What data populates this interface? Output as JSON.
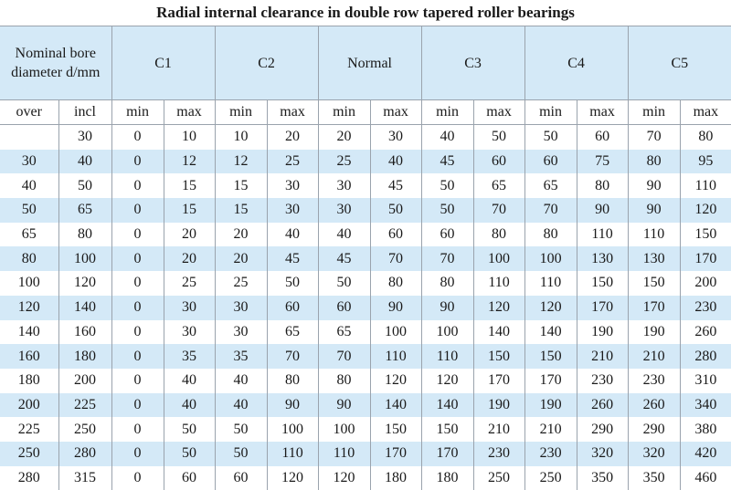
{
  "title": "Radial internal clearance in double row tapered roller bearings",
  "table": {
    "bore_header": "Nominal bore diameter d/mm",
    "groups": [
      "C1",
      "C2",
      "Normal",
      "C3",
      "C4",
      "C5"
    ],
    "sub_headers": [
      "over",
      "incl",
      "min",
      "max",
      "min",
      "max",
      "min",
      "max",
      "min",
      "max",
      "min",
      "max",
      "min",
      "max"
    ],
    "rows": [
      [
        "",
        "30",
        "0",
        "10",
        "10",
        "20",
        "20",
        "30",
        "40",
        "50",
        "50",
        "60",
        "70",
        "80"
      ],
      [
        "30",
        "40",
        "0",
        "12",
        "12",
        "25",
        "25",
        "40",
        "45",
        "60",
        "60",
        "75",
        "80",
        "95"
      ],
      [
        "40",
        "50",
        "0",
        "15",
        "15",
        "30",
        "30",
        "45",
        "50",
        "65",
        "65",
        "80",
        "90",
        "110"
      ],
      [
        "50",
        "65",
        "0",
        "15",
        "15",
        "30",
        "30",
        "50",
        "50",
        "70",
        "70",
        "90",
        "90",
        "120"
      ],
      [
        "65",
        "80",
        "0",
        "20",
        "20",
        "40",
        "40",
        "60",
        "60",
        "80",
        "80",
        "110",
        "110",
        "150"
      ],
      [
        "80",
        "100",
        "0",
        "20",
        "20",
        "45",
        "45",
        "70",
        "70",
        "100",
        "100",
        "130",
        "130",
        "170"
      ],
      [
        "100",
        "120",
        "0",
        "25",
        "25",
        "50",
        "50",
        "80",
        "80",
        "110",
        "110",
        "150",
        "150",
        "200"
      ],
      [
        "120",
        "140",
        "0",
        "30",
        "30",
        "60",
        "60",
        "90",
        "90",
        "120",
        "120",
        "170",
        "170",
        "230"
      ],
      [
        "140",
        "160",
        "0",
        "30",
        "30",
        "65",
        "65",
        "100",
        "100",
        "140",
        "140",
        "190",
        "190",
        "260"
      ],
      [
        "160",
        "180",
        "0",
        "35",
        "35",
        "70",
        "70",
        "110",
        "110",
        "150",
        "150",
        "210",
        "210",
        "280"
      ],
      [
        "180",
        "200",
        "0",
        "40",
        "40",
        "80",
        "80",
        "120",
        "120",
        "170",
        "170",
        "230",
        "230",
        "310"
      ],
      [
        "200",
        "225",
        "0",
        "40",
        "40",
        "90",
        "90",
        "140",
        "140",
        "190",
        "190",
        "260",
        "260",
        "340"
      ],
      [
        "225",
        "250",
        "0",
        "50",
        "50",
        "100",
        "100",
        "150",
        "150",
        "210",
        "210",
        "290",
        "290",
        "380"
      ],
      [
        "250",
        "280",
        "0",
        "50",
        "50",
        "110",
        "110",
        "170",
        "170",
        "230",
        "230",
        "320",
        "320",
        "420"
      ],
      [
        "280",
        "315",
        "0",
        "60",
        "60",
        "120",
        "120",
        "180",
        "180",
        "250",
        "250",
        "350",
        "350",
        "460"
      ]
    ]
  }
}
